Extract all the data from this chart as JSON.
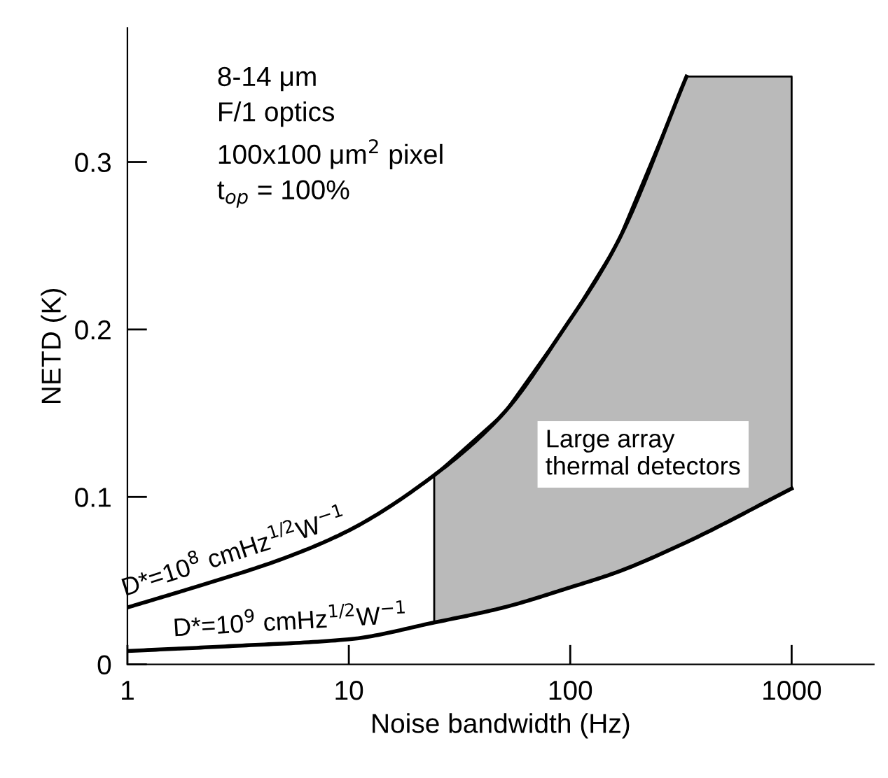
{
  "chart_data": {
    "type": "line",
    "xlabel": "Noise bandwidth (Hz)",
    "ylabel": "NETD (K)",
    "log": "x",
    "xlim": [
      1,
      2350
    ],
    "xticks": [
      1,
      10,
      100,
      1000
    ],
    "ylim": [
      0,
      0.38
    ],
    "yticks": [
      0,
      0.1,
      0.2,
      0.3
    ],
    "grid": false,
    "legend": false,
    "marker": "none",
    "line_style": "solid",
    "series": [
      {
        "name": "D*=10$^{8}$ cmHz$^{1/2}$W$^{−1}$",
        "color": "#000000",
        "x": [
          1,
          2,
          5,
          10,
          24.3,
          50,
          90,
          162,
          335
        ],
        "values": [
          0.034,
          0.046,
          0.063,
          0.08,
          0.113,
          0.15,
          0.197,
          0.251,
          0.351
        ]
      },
      {
        "name": "D*=10$^{9}$ cmHz$^{1/2}$W$^{−1}$",
        "color": "#000000",
        "x": [
          1,
          3,
          10,
          24.3,
          50,
          100,
          162,
          335,
          1000
        ],
        "values": [
          0.008,
          0.011,
          0.015,
          0.025,
          0.034,
          0.046,
          0.055,
          0.073,
          0.105
        ],
        "lower": [
          null,
          null,
          null,
          0.025,
          0.034,
          0.046,
          0.055,
          0.073,
          0.105
        ],
        "upper": [
          null,
          null,
          null,
          0.113,
          0.15,
          0.206,
          0.251,
          0.351,
          0.351
        ]
      }
    ],
    "annotations": [
      "8-14 μm\nF/1 optics\n100x100 μm$^{2}$ pixel\nt$_{op}$ = 100%",
      "Large array\nthermal detectors"
    ]
  }
}
